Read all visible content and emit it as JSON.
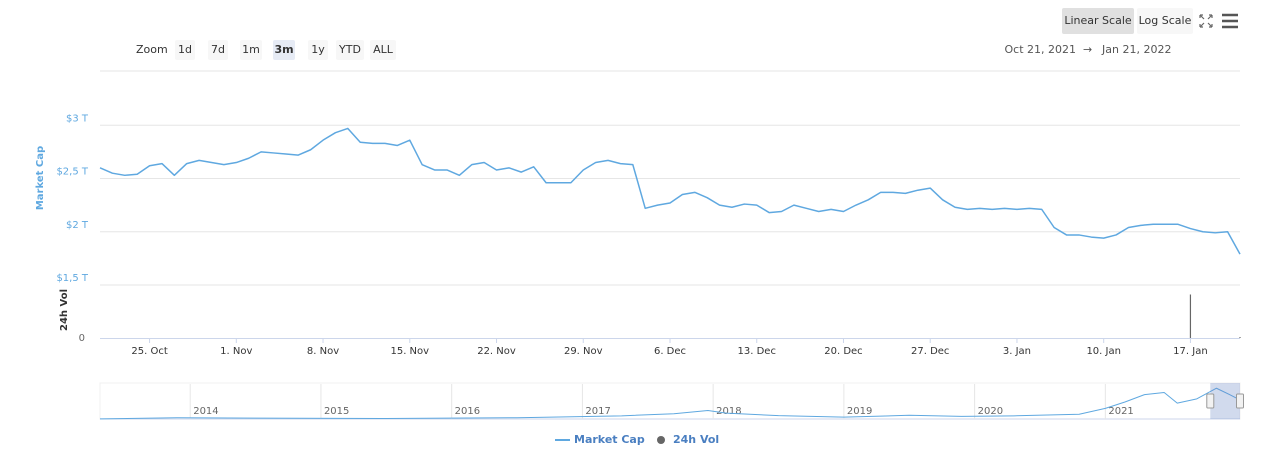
{
  "toolbar": {
    "zoom_label": "Zoom",
    "buttons": [
      "1d",
      "7d",
      "1m",
      "3m",
      "1y",
      "YTD",
      "ALL"
    ],
    "selected": 3,
    "scale_buttons": [
      "Linear Scale",
      "Log Scale"
    ],
    "scale_selected": 0,
    "range_from": "Oct 21, 2021",
    "range_arrow": "→",
    "range_to": "Jan 21, 2022"
  },
  "chart_data": [
    {
      "type": "line",
      "y_label": "Market Cap",
      "y2_label": "24h Vol",
      "x": [
        "2021-10-21",
        "2021-10-22",
        "2021-10-23",
        "2021-10-24",
        "2021-10-25",
        "2021-10-26",
        "2021-10-27",
        "2021-10-28",
        "2021-10-29",
        "2021-10-30",
        "2021-10-31",
        "2021-11-01",
        "2021-11-02",
        "2021-11-03",
        "2021-11-04",
        "2021-11-05",
        "2021-11-06",
        "2021-11-07",
        "2021-11-08",
        "2021-11-09",
        "2021-11-10",
        "2021-11-11",
        "2021-11-12",
        "2021-11-13",
        "2021-11-14",
        "2021-11-15",
        "2021-11-16",
        "2021-11-17",
        "2021-11-18",
        "2021-11-19",
        "2021-11-20",
        "2021-11-21",
        "2021-11-22",
        "2021-11-23",
        "2021-11-24",
        "2021-11-25",
        "2021-11-26",
        "2021-11-27",
        "2021-11-28",
        "2021-11-29",
        "2021-11-30",
        "2021-12-01",
        "2021-12-02",
        "2021-12-03",
        "2021-12-04",
        "2021-12-05",
        "2021-12-06",
        "2021-12-07",
        "2021-12-08",
        "2021-12-09",
        "2021-12-10",
        "2021-12-11",
        "2021-12-12",
        "2021-12-13",
        "2021-12-14",
        "2021-12-15",
        "2021-12-16",
        "2021-12-17",
        "2021-12-18",
        "2021-12-19",
        "2021-12-20",
        "2021-12-21",
        "2021-12-22",
        "2021-12-23",
        "2021-12-24",
        "2021-12-25",
        "2021-12-26",
        "2021-12-27",
        "2021-12-28",
        "2021-12-29",
        "2021-12-30",
        "2021-12-31",
        "2022-01-01",
        "2022-01-02",
        "2022-01-03",
        "2022-01-04",
        "2022-01-05",
        "2022-01-06",
        "2022-01-07",
        "2022-01-08",
        "2022-01-09",
        "2022-01-10",
        "2022-01-11",
        "2022-01-12",
        "2022-01-13",
        "2022-01-14",
        "2022-01-15",
        "2022-01-16",
        "2022-01-17",
        "2022-01-18",
        "2022-01-19",
        "2022-01-20",
        "2022-01-21"
      ],
      "series": [
        {
          "name": "Market Cap",
          "color": "#5fa8e0",
          "values": [
            2.6,
            2.55,
            2.53,
            2.54,
            2.62,
            2.64,
            2.53,
            2.64,
            2.67,
            2.65,
            2.63,
            2.65,
            2.69,
            2.75,
            2.74,
            2.73,
            2.72,
            2.77,
            2.86,
            2.93,
            2.97,
            2.84,
            2.83,
            2.83,
            2.81,
            2.86,
            2.63,
            2.58,
            2.58,
            2.53,
            2.63,
            2.65,
            2.58,
            2.6,
            2.56,
            2.61,
            2.46,
            2.46,
            2.46,
            2.58,
            2.65,
            2.67,
            2.64,
            2.63,
            2.22,
            2.25,
            2.27,
            2.35,
            2.37,
            2.32,
            2.25,
            2.23,
            2.26,
            2.25,
            2.18,
            2.19,
            2.25,
            2.22,
            2.19,
            2.21,
            2.19,
            2.25,
            2.3,
            2.37,
            2.37,
            2.36,
            2.39,
            2.41,
            2.3,
            2.23,
            2.21,
            2.22,
            2.21,
            2.22,
            2.21,
            2.22,
            2.21,
            2.04,
            1.97,
            1.97,
            1.95,
            1.94,
            1.97,
            2.04,
            2.06,
            2.07,
            2.07,
            2.07,
            2.03,
            2.0,
            1.99,
            2.0,
            1.79
          ]
        },
        {
          "name": "24h Vol",
          "color": "#666666",
          "axis": "y2",
          "values": [
            0,
            0,
            0,
            0,
            0,
            0,
            0,
            0,
            0,
            0,
            0,
            0,
            0,
            0,
            0,
            0,
            0,
            0,
            0,
            0,
            0,
            0,
            0,
            0,
            0,
            0,
            0,
            0,
            0,
            0,
            0,
            0,
            0,
            0,
            0,
            0,
            0,
            0,
            0,
            0,
            0,
            0,
            0,
            0,
            0,
            0,
            0,
            0,
            0,
            0,
            0,
            0,
            0,
            0,
            0,
            0,
            0,
            0,
            0,
            0,
            0,
            0,
            0,
            0,
            0,
            0,
            0,
            0,
            0,
            0,
            0,
            0,
            0,
            0,
            0,
            0,
            0,
            0,
            0,
            0,
            0,
            0,
            0,
            0,
            0,
            0,
            0,
            0,
            0.87,
            0,
            0,
            0,
            0.02
          ]
        }
      ],
      "xlim": [
        "2021-10-21",
        "2022-01-21"
      ],
      "xticks": [
        {
          "value": "2021-10-25",
          "label": "25. Oct"
        },
        {
          "value": "2021-11-01",
          "label": "1. Nov"
        },
        {
          "value": "2021-11-08",
          "label": "8. Nov"
        },
        {
          "value": "2021-11-15",
          "label": "15. Nov"
        },
        {
          "value": "2021-11-22",
          "label": "22. Nov"
        },
        {
          "value": "2021-11-29",
          "label": "29. Nov"
        },
        {
          "value": "2021-12-06",
          "label": "6. Dec"
        },
        {
          "value": "2021-12-13",
          "label": "13. Dec"
        },
        {
          "value": "2021-12-20",
          "label": "20. Dec"
        },
        {
          "value": "2021-12-27",
          "label": "27. Dec"
        },
        {
          "value": "2022-01-03",
          "label": "3. Jan"
        },
        {
          "value": "2022-01-10",
          "label": "10. Jan"
        },
        {
          "value": "2022-01-17",
          "label": "17. Jan"
        }
      ],
      "ylim": [
        1.5,
        3.5
      ],
      "yticks": [
        {
          "value": 1.5,
          "label": "$1,5 T"
        },
        {
          "value": 2,
          "label": "$2 T"
        },
        {
          "value": 2.5,
          "label": "$2,5 T"
        },
        {
          "value": 3,
          "label": "$3 T"
        }
      ],
      "y2lim": [
        0,
        1
      ],
      "y2ticks": [
        0
      ],
      "grid": true
    },
    {
      "type": "area",
      "color": "#5fa8e0",
      "x": [
        2013.31,
        2013.9,
        2014.5,
        2015.5,
        2016.5,
        2017.3,
        2017.7,
        2017.96,
        2018.1,
        2018.5,
        2019.0,
        2019.5,
        2019.9,
        2020.3,
        2020.8,
        2021.0,
        2021.15,
        2021.3,
        2021.45,
        2021.55,
        2021.7,
        2021.85,
        2021.95,
        2022.03
      ],
      "values": [
        0.01,
        0.12,
        0.08,
        0.05,
        0.12,
        0.3,
        0.5,
        0.8,
        0.55,
        0.32,
        0.18,
        0.35,
        0.25,
        0.3,
        0.45,
        1.0,
        1.6,
        2.3,
        2.5,
        1.5,
        1.9,
        2.9,
        2.3,
        1.8
      ],
      "xlim": [
        2013.31,
        2022.03
      ],
      "ylim": [
        0,
        3.3
      ],
      "xticks": [
        2014,
        2015,
        2016,
        2017,
        2018,
        2019,
        2020,
        2021
      ]
    }
  ]
}
